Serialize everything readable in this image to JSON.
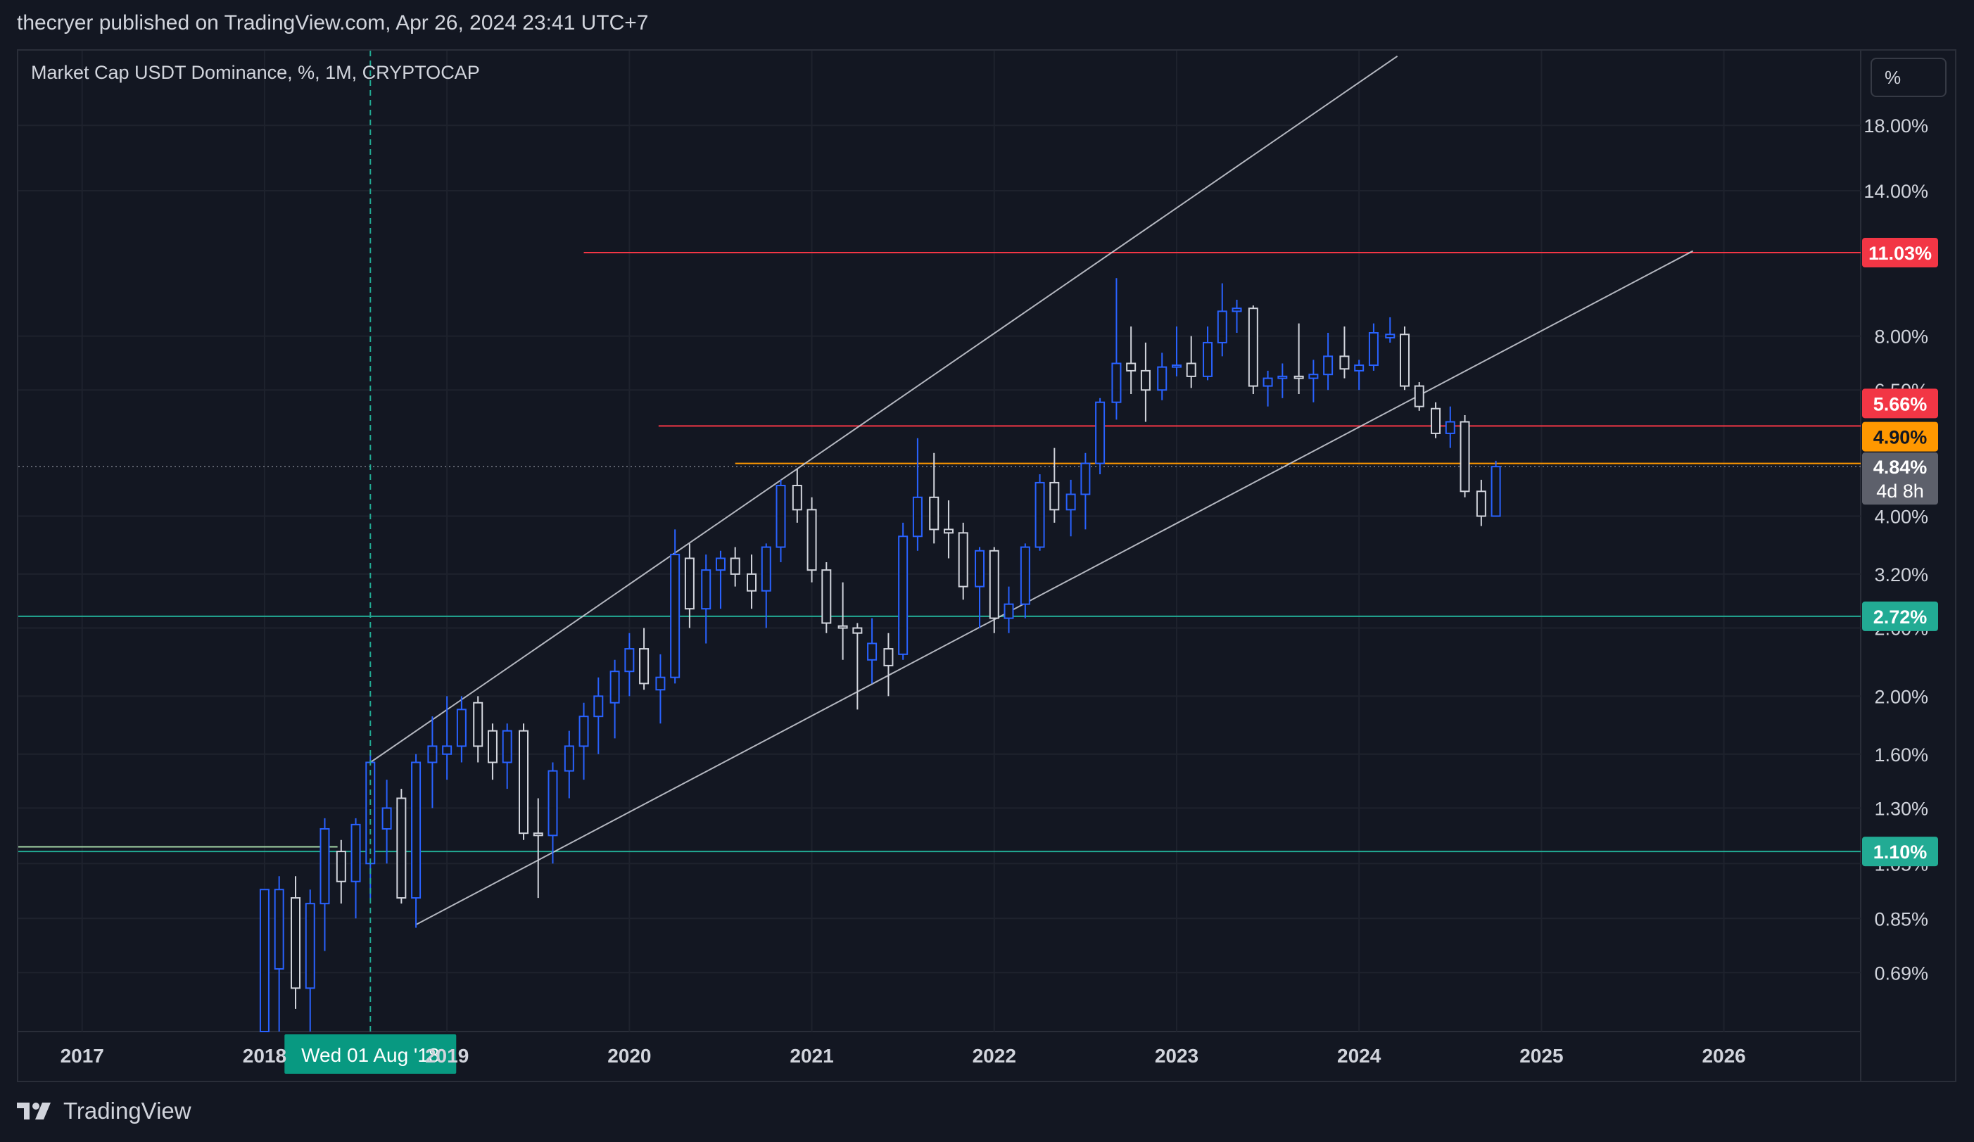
{
  "header": {
    "publisher_line": "thecryer published on TradingView.com, Apr 26, 2024 23:41 UTC+7"
  },
  "symbol": {
    "label": "Market Cap USDT Dominance, %, 1M, CRYPTOCAP"
  },
  "scale_button": {
    "label": "%"
  },
  "footer": {
    "brand": "TradingView",
    "logo_icon": "tradingview-logo-icon"
  },
  "colors": {
    "background": "#131722",
    "grid": "#1e222d",
    "candle_up": "#2962ff",
    "candle_down": "#d1d4dc",
    "red_line": "#f23645",
    "orange_line": "#ff9800",
    "teal_line": "#22ab94",
    "channel_line": "#d1d4dc"
  },
  "chart_data": {
    "type": "candlestick",
    "title": "Market Cap USDT Dominance, %, 1M, CRYPTOCAP",
    "y_scale": "log",
    "ylim": [
      0.55,
      24
    ],
    "xlim": [
      2016.65,
      2026.75
    ],
    "x_ticks": [
      "2017",
      "2018",
      "2019",
      "2020",
      "2021",
      "2022",
      "2023",
      "2024",
      "2025",
      "2026"
    ],
    "x_tick_values": [
      2017,
      2018,
      2019,
      2020,
      2021,
      2022,
      2023,
      2024,
      2025,
      2026
    ],
    "y_ticks": [
      "18.00%",
      "14.00%",
      "8.00%",
      "6.50%",
      "4.00%",
      "3.20%",
      "2.60%",
      "2.00%",
      "1.60%",
      "1.30%",
      "1.05%",
      "0.85%",
      "0.69%"
    ],
    "y_tick_values": [
      18,
      14,
      8,
      6.5,
      4,
      3.2,
      2.6,
      2,
      1.6,
      1.3,
      1.05,
      0.85,
      0.69
    ],
    "crosshair": {
      "x": 2018.58,
      "label": "Wed 01 Aug '18"
    },
    "candles": [
      {
        "t": 2018.0,
        "o": 0.55,
        "h": 0.95,
        "l": 0.55,
        "c": 0.95
      },
      {
        "t": 2018.08,
        "o": 0.7,
        "h": 1.0,
        "l": 0.55,
        "c": 0.95
      },
      {
        "t": 2018.17,
        "o": 0.92,
        "h": 1.0,
        "l": 0.6,
        "c": 0.65
      },
      {
        "t": 2018.25,
        "o": 0.65,
        "h": 0.95,
        "l": 0.55,
        "c": 0.9
      },
      {
        "t": 2018.33,
        "o": 0.9,
        "h": 1.25,
        "l": 0.75,
        "c": 1.2
      },
      {
        "t": 2018.42,
        "o": 1.1,
        "h": 1.15,
        "l": 0.9,
        "c": 0.98
      },
      {
        "t": 2018.5,
        "o": 0.98,
        "h": 1.25,
        "l": 0.85,
        "c": 1.22
      },
      {
        "t": 2018.58,
        "o": 1.05,
        "h": 1.6,
        "l": 0.92,
        "c": 1.55
      },
      {
        "t": 2018.67,
        "o": 1.2,
        "h": 1.45,
        "l": 1.05,
        "c": 1.3
      },
      {
        "t": 2018.75,
        "o": 1.35,
        "h": 1.4,
        "l": 0.9,
        "c": 0.92
      },
      {
        "t": 2018.83,
        "o": 0.92,
        "h": 1.6,
        "l": 0.82,
        "c": 1.55
      },
      {
        "t": 2018.92,
        "o": 1.55,
        "h": 1.85,
        "l": 1.3,
        "c": 1.65
      },
      {
        "t": 2019.0,
        "o": 1.6,
        "h": 2.0,
        "l": 1.45,
        "c": 1.65
      },
      {
        "t": 2019.08,
        "o": 1.65,
        "h": 2.0,
        "l": 1.55,
        "c": 1.9
      },
      {
        "t": 2019.17,
        "o": 1.95,
        "h": 2.0,
        "l": 1.55,
        "c": 1.65
      },
      {
        "t": 2019.25,
        "o": 1.75,
        "h": 1.8,
        "l": 1.45,
        "c": 1.55
      },
      {
        "t": 2019.33,
        "o": 1.55,
        "h": 1.8,
        "l": 1.4,
        "c": 1.75
      },
      {
        "t": 2019.42,
        "o": 1.75,
        "h": 1.8,
        "l": 1.15,
        "c": 1.18
      },
      {
        "t": 2019.5,
        "o": 1.18,
        "h": 1.35,
        "l": 0.92,
        "c": 1.17
      },
      {
        "t": 2019.58,
        "o": 1.17,
        "h": 1.55,
        "l": 1.05,
        "c": 1.5
      },
      {
        "t": 2019.67,
        "o": 1.5,
        "h": 1.75,
        "l": 1.35,
        "c": 1.65
      },
      {
        "t": 2019.75,
        "o": 1.65,
        "h": 1.95,
        "l": 1.45,
        "c": 1.85
      },
      {
        "t": 2019.83,
        "o": 1.85,
        "h": 2.15,
        "l": 1.6,
        "c": 2.0
      },
      {
        "t": 2019.92,
        "o": 1.95,
        "h": 2.3,
        "l": 1.7,
        "c": 2.2
      },
      {
        "t": 2020.0,
        "o": 2.2,
        "h": 2.55,
        "l": 2.0,
        "c": 2.4
      },
      {
        "t": 2020.08,
        "o": 2.4,
        "h": 2.6,
        "l": 2.05,
        "c": 2.1
      },
      {
        "t": 2020.17,
        "o": 2.05,
        "h": 2.35,
        "l": 1.8,
        "c": 2.15
      },
      {
        "t": 2020.25,
        "o": 2.15,
        "h": 3.8,
        "l": 2.1,
        "c": 3.45
      },
      {
        "t": 2020.33,
        "o": 3.4,
        "h": 3.6,
        "l": 2.6,
        "c": 2.8
      },
      {
        "t": 2020.42,
        "o": 2.8,
        "h": 3.45,
        "l": 2.45,
        "c": 3.25
      },
      {
        "t": 2020.5,
        "o": 3.25,
        "h": 3.5,
        "l": 2.8,
        "c": 3.4
      },
      {
        "t": 2020.58,
        "o": 3.4,
        "h": 3.55,
        "l": 3.05,
        "c": 3.2
      },
      {
        "t": 2020.67,
        "o": 3.2,
        "h": 3.45,
        "l": 2.8,
        "c": 3.0
      },
      {
        "t": 2020.75,
        "o": 3.0,
        "h": 3.6,
        "l": 2.6,
        "c": 3.55
      },
      {
        "t": 2020.83,
        "o": 3.55,
        "h": 4.6,
        "l": 3.35,
        "c": 4.5
      },
      {
        "t": 2020.92,
        "o": 4.5,
        "h": 4.8,
        "l": 3.9,
        "c": 4.1
      },
      {
        "t": 2021.0,
        "o": 4.1,
        "h": 4.3,
        "l": 3.1,
        "c": 3.25
      },
      {
        "t": 2021.08,
        "o": 3.25,
        "h": 3.35,
        "l": 2.55,
        "c": 2.65
      },
      {
        "t": 2021.17,
        "o": 2.62,
        "h": 3.1,
        "l": 2.3,
        "c": 2.6
      },
      {
        "t": 2021.25,
        "o": 2.6,
        "h": 2.65,
        "l": 1.9,
        "c": 2.55
      },
      {
        "t": 2021.33,
        "o": 2.3,
        "h": 2.7,
        "l": 2.1,
        "c": 2.45
      },
      {
        "t": 2021.42,
        "o": 2.4,
        "h": 2.55,
        "l": 2.0,
        "c": 2.25
      },
      {
        "t": 2021.5,
        "o": 2.35,
        "h": 3.9,
        "l": 2.3,
        "c": 3.7
      },
      {
        "t": 2021.58,
        "o": 3.7,
        "h": 5.4,
        "l": 3.5,
        "c": 4.3
      },
      {
        "t": 2021.67,
        "o": 4.3,
        "h": 5.1,
        "l": 3.6,
        "c": 3.8
      },
      {
        "t": 2021.75,
        "o": 3.8,
        "h": 4.25,
        "l": 3.4,
        "c": 3.75
      },
      {
        "t": 2021.83,
        "o": 3.75,
        "h": 3.9,
        "l": 2.9,
        "c": 3.05
      },
      {
        "t": 2021.92,
        "o": 3.05,
        "h": 3.55,
        "l": 2.6,
        "c": 3.5
      },
      {
        "t": 2022.0,
        "o": 3.5,
        "h": 3.55,
        "l": 2.55,
        "c": 2.7
      },
      {
        "t": 2022.08,
        "o": 2.7,
        "h": 3.05,
        "l": 2.55,
        "c": 2.85
      },
      {
        "t": 2022.17,
        "o": 2.85,
        "h": 3.6,
        "l": 2.7,
        "c": 3.55
      },
      {
        "t": 2022.25,
        "o": 3.55,
        "h": 4.7,
        "l": 3.5,
        "c": 4.55
      },
      {
        "t": 2022.33,
        "o": 4.55,
        "h": 5.2,
        "l": 3.9,
        "c": 4.1
      },
      {
        "t": 2022.42,
        "o": 4.1,
        "h": 4.6,
        "l": 3.7,
        "c": 4.35
      },
      {
        "t": 2022.5,
        "o": 4.35,
        "h": 5.1,
        "l": 3.8,
        "c": 4.9
      },
      {
        "t": 2022.58,
        "o": 4.9,
        "h": 6.3,
        "l": 4.7,
        "c": 6.2
      },
      {
        "t": 2022.67,
        "o": 6.2,
        "h": 10.0,
        "l": 5.8,
        "c": 7.2
      },
      {
        "t": 2022.75,
        "o": 7.2,
        "h": 8.3,
        "l": 6.4,
        "c": 7.0
      },
      {
        "t": 2022.83,
        "o": 7.0,
        "h": 7.8,
        "l": 5.75,
        "c": 6.5
      },
      {
        "t": 2022.92,
        "o": 6.5,
        "h": 7.5,
        "l": 6.25,
        "c": 7.1
      },
      {
        "t": 2023.0,
        "o": 7.1,
        "h": 8.3,
        "l": 6.85,
        "c": 7.15
      },
      {
        "t": 2023.08,
        "o": 7.2,
        "h": 8.0,
        "l": 6.55,
        "c": 6.85
      },
      {
        "t": 2023.17,
        "o": 6.85,
        "h": 8.3,
        "l": 6.75,
        "c": 7.8
      },
      {
        "t": 2023.25,
        "o": 7.8,
        "h": 9.8,
        "l": 7.4,
        "c": 8.8
      },
      {
        "t": 2023.33,
        "o": 8.8,
        "h": 9.2,
        "l": 8.1,
        "c": 8.9
      },
      {
        "t": 2023.42,
        "o": 8.9,
        "h": 9.0,
        "l": 6.4,
        "c": 6.6
      },
      {
        "t": 2023.5,
        "o": 6.6,
        "h": 7.0,
        "l": 6.1,
        "c": 6.8
      },
      {
        "t": 2023.58,
        "o": 6.8,
        "h": 7.2,
        "l": 6.3,
        "c": 6.85
      },
      {
        "t": 2023.67,
        "o": 6.85,
        "h": 8.4,
        "l": 6.4,
        "c": 6.8
      },
      {
        "t": 2023.75,
        "o": 6.8,
        "h": 7.3,
        "l": 6.2,
        "c": 6.9
      },
      {
        "t": 2023.83,
        "o": 6.9,
        "h": 8.1,
        "l": 6.5,
        "c": 7.4
      },
      {
        "t": 2023.92,
        "o": 7.4,
        "h": 8.3,
        "l": 6.8,
        "c": 7.05
      },
      {
        "t": 2024.0,
        "o": 7.0,
        "h": 7.3,
        "l": 6.5,
        "c": 7.15
      },
      {
        "t": 2024.08,
        "o": 7.15,
        "h": 8.4,
        "l": 7.0,
        "c": 8.1
      },
      {
        "t": 2024.17,
        "o": 7.95,
        "h": 8.6,
        "l": 7.8,
        "c": 8.05
      },
      {
        "t": 2024.25,
        "o": 8.05,
        "h": 8.3,
        "l": 6.5,
        "c": 6.6
      },
      {
        "t": 2024.33,
        "o": 6.6,
        "h": 6.7,
        "l": 6.0,
        "c": 6.1
      },
      {
        "t": 2024.42,
        "o": 6.05,
        "h": 6.2,
        "l": 5.4,
        "c": 5.5
      },
      {
        "t": 2024.5,
        "o": 5.5,
        "h": 6.1,
        "l": 5.2,
        "c": 5.75
      },
      {
        "t": 2024.58,
        "o": 5.75,
        "h": 5.9,
        "l": 4.3,
        "c": 4.4
      },
      {
        "t": 2024.67,
        "o": 4.4,
        "h": 4.6,
        "l": 3.85,
        "c": 4.0
      },
      {
        "t": 2024.75,
        "o": 4.0,
        "h": 4.95,
        "l": 4.0,
        "c": 4.84
      }
    ],
    "horizontal_lines": [
      {
        "price": 11.03,
        "label": "11.03%",
        "color": "#f23645",
        "x_start": 2019.75
      },
      {
        "price": 5.66,
        "label": "5.66%",
        "color": "#f23645",
        "x_start": 2020.16
      },
      {
        "price": 4.9,
        "label": "4.90%",
        "color": "#ff9800",
        "x_start": 2020.58
      },
      {
        "price": 2.72,
        "label": "2.72%",
        "color": "#22ab94",
        "x_start": 2016.65
      },
      {
        "price": 1.1,
        "label": "1.10%",
        "color": "#22ab94",
        "x_start": 2016.65
      }
    ],
    "current_price": {
      "price": 4.84,
      "label": "4.84%",
      "countdown": "4d 8h"
    },
    "channel_lines": [
      {
        "x1": 2018.58,
        "y1": 1.55,
        "x2": 2024.21,
        "y2": 23.5
      },
      {
        "x1": 2018.83,
        "y1": 0.83,
        "x2": 2025.83,
        "y2": 11.1
      }
    ],
    "secondary_teal_line": {
      "price": 1.12,
      "x_start": 2016.65,
      "x_end": 2018.4
    }
  }
}
